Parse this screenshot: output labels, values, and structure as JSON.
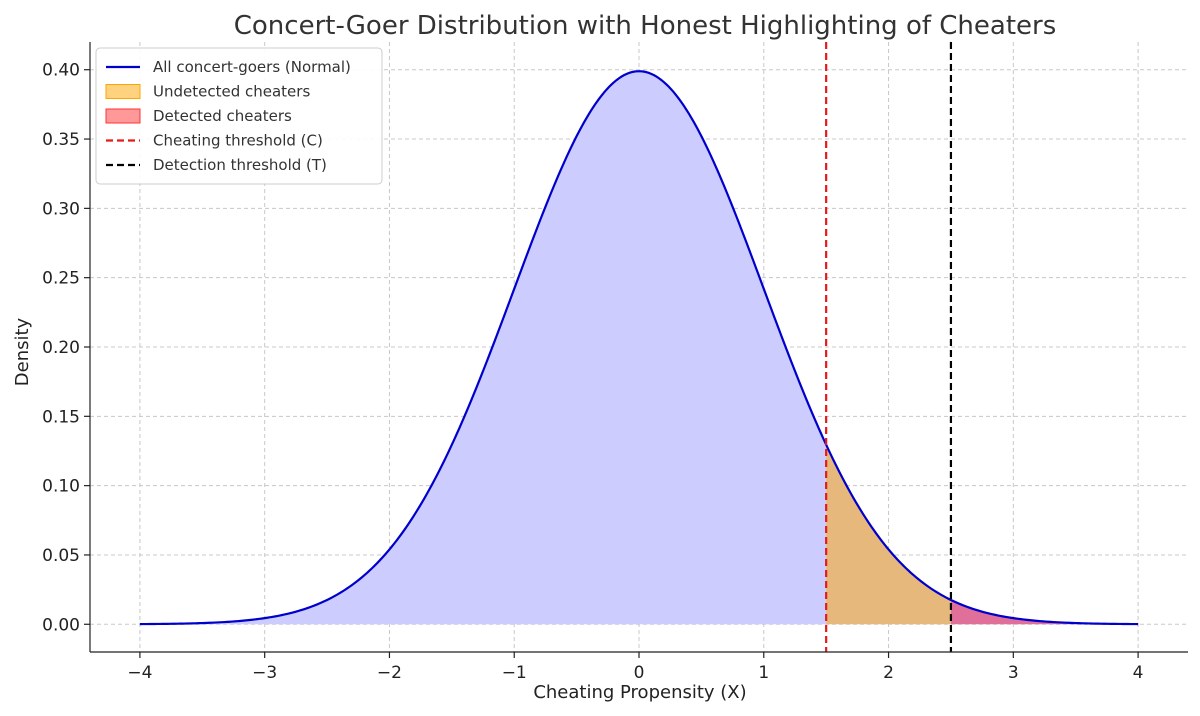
{
  "chart_data": {
    "type": "area",
    "title": "Concert-Goer Distribution with Honest Highlighting of Cheaters",
    "xlabel": "Cheating Propensity (X)",
    "ylabel": "Density",
    "xlim": [
      -4.4,
      4.4
    ],
    "ylim": [
      -0.02,
      0.42
    ],
    "x_range": [
      -4,
      4
    ],
    "x_ticks": [
      -4,
      -3,
      -2,
      -1,
      0,
      1,
      2,
      3,
      4
    ],
    "x_tick_labels": [
      "−4",
      "−3",
      "−2",
      "−1",
      "0",
      "1",
      "2",
      "3",
      "4"
    ],
    "y_ticks": [
      0.0,
      0.05,
      0.1,
      0.15,
      0.2,
      0.25,
      0.3,
      0.35,
      0.4
    ],
    "y_tick_labels": [
      "0.00",
      "0.05",
      "0.10",
      "0.15",
      "0.20",
      "0.25",
      "0.30",
      "0.35",
      "0.40"
    ],
    "grid": true,
    "legend_position": "top-left",
    "distribution": {
      "kind": "normal",
      "mean": 0,
      "sd": 1
    },
    "cheating_threshold": 1.5,
    "detection_threshold": 2.5,
    "series": [
      {
        "name": "All concert-goers (Normal)",
        "kind": "line",
        "color": "#0000cc"
      },
      {
        "name": "Undetected cheaters",
        "kind": "area",
        "color": "#ffa500"
      },
      {
        "name": "Detected cheaters",
        "kind": "area",
        "color": "#ff3333"
      },
      {
        "name": "Cheating threshold (C)",
        "kind": "vline",
        "color": "#e41a1c"
      },
      {
        "name": "Detection threshold (T)",
        "kind": "vline",
        "color": "#000000"
      }
    ],
    "colors": {
      "base_fill": "#ccccff",
      "undetected_fill": "#e6b87c",
      "detected_fill": "#e0709a"
    }
  }
}
